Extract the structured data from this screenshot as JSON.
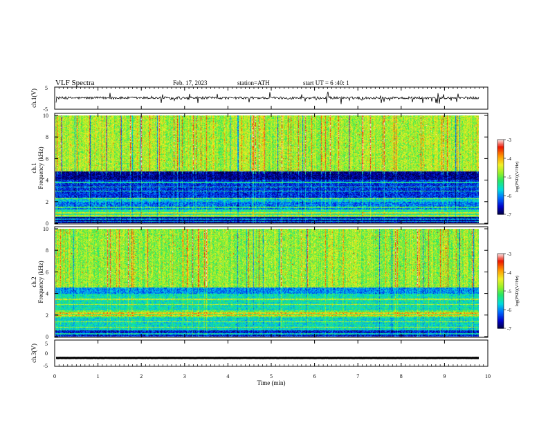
{
  "header": {
    "title": "VLF  Spectra",
    "date": "Feb. 17, 2023",
    "station": "station=ATH",
    "start": "start  UT  =   6  :40: 1"
  },
  "chart_data": [
    {
      "type": "line",
      "id": "ch1-voltage",
      "ylabel": "ch.1(V)",
      "ylim": [
        -5,
        5
      ],
      "y_ticks": [
        "5",
        "-5"
      ],
      "xlim": [
        0,
        10
      ],
      "trace": {
        "baseline": 0.1,
        "noise": 0.55,
        "spike_max": 2.5,
        "color": "#000000"
      }
    },
    {
      "type": "heatmap",
      "id": "ch1-spectrogram",
      "ylabel_top": "ch.1",
      "ylabel": "Frequency  (kHz)",
      "ylim": [
        0,
        10
      ],
      "y_ticks": [
        "0",
        "2",
        "4",
        "6",
        "8",
        "10"
      ],
      "xlim": [
        0,
        9.8
      ],
      "bands": [
        {
          "from": 4.85,
          "to": 10.0,
          "level": -4.7
        },
        {
          "from": 4.1,
          "to": 4.85,
          "level": -6.8
        },
        {
          "from": 2.4,
          "to": 4.1,
          "level": -6.4
        },
        {
          "from": 2.0,
          "to": 2.4,
          "level": -5.7
        },
        {
          "from": 1.3,
          "to": 2.0,
          "level": -6.1
        },
        {
          "from": 0.6,
          "to": 1.3,
          "level": -5.4
        },
        {
          "from": 0.0,
          "to": 0.6,
          "level": -6.9
        }
      ],
      "lines_khz": [
        0.2,
        0.4,
        0.75,
        1.0,
        1.5,
        2.3,
        3.0,
        3.4,
        3.8
      ]
    },
    {
      "type": "heatmap",
      "id": "ch2-spectrogram",
      "ylabel_top": "ch.2",
      "ylabel": "Frequency  (kHz)",
      "ylim": [
        0,
        10
      ],
      "y_ticks": [
        "0",
        "2",
        "4",
        "6",
        "8",
        "10"
      ],
      "xlim": [
        0,
        9.8
      ],
      "bands": [
        {
          "from": 4.6,
          "to": 10.0,
          "level": -4.8
        },
        {
          "from": 4.0,
          "to": 4.6,
          "level": -6.0
        },
        {
          "from": 2.5,
          "to": 4.0,
          "level": -5.5
        },
        {
          "from": 1.8,
          "to": 2.5,
          "level": -5.0
        },
        {
          "from": 0.6,
          "to": 1.8,
          "level": -5.6
        },
        {
          "from": 0.0,
          "to": 0.6,
          "level": -6.5
        }
      ],
      "lines_khz": [
        0.3,
        0.9,
        1.4,
        2.0,
        2.2,
        3.0,
        3.5
      ]
    },
    {
      "type": "line",
      "id": "ch3-voltage",
      "ylabel": "ch.3(V)",
      "ylim": [
        -5,
        5
      ],
      "y_ticks": [
        "5",
        "0",
        "-5"
      ],
      "xlim": [
        0,
        10
      ],
      "trace": {
        "baseline": -1.8,
        "noise": 0.05,
        "spike_max": 0,
        "color": "#000000"
      }
    }
  ],
  "x_axis": {
    "label": "Time  (min)",
    "ticks": [
      "0",
      "1",
      "2",
      "3",
      "4",
      "5",
      "6",
      "7",
      "8",
      "9",
      "10"
    ]
  },
  "colorbar": {
    "label": "log(PSD)(V²/Hz)",
    "ticks": [
      "-3",
      "-4",
      "-5",
      "-6",
      "-7"
    ],
    "range": [
      -7,
      -3
    ]
  }
}
